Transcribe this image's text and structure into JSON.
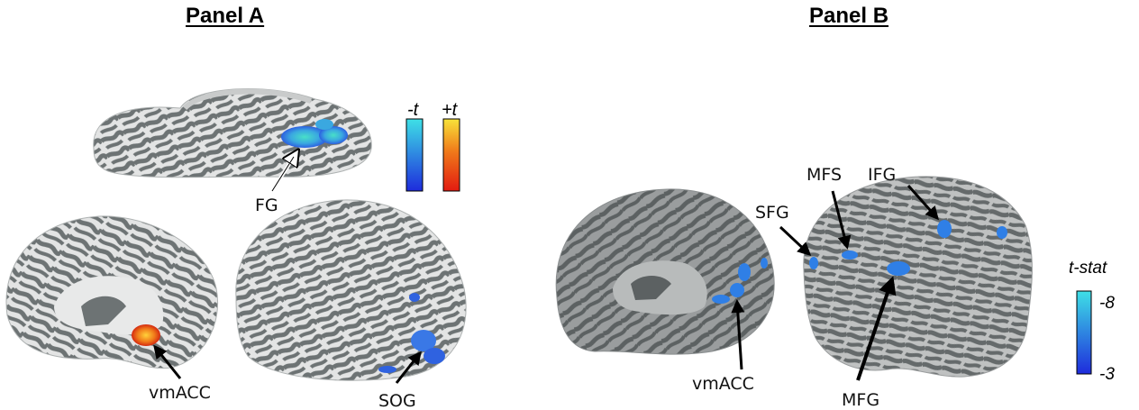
{
  "panels": {
    "a": {
      "title": "Panel A",
      "labels": {
        "fg": "FG",
        "vmacc": "vmACC",
        "sog": "SOG"
      },
      "colorbars": {
        "negative_label": "-t",
        "positive_label": "+t"
      }
    },
    "b": {
      "title": "Panel B",
      "labels": {
        "vmacc": "vmACC",
        "sfg": "SFG",
        "mfs": "MFS",
        "ifg": "IFG",
        "mfg": "MFG"
      },
      "colorbar": {
        "title": "t-stat",
        "max_label": "-8",
        "min_label": "-3"
      }
    }
  },
  "colors": {
    "sulcus": "#6d7374",
    "gyrus": "#e3e4e4",
    "neg_low": "#1e2bdc",
    "neg_high": "#3ee0e6",
    "pos_low": "#e21a10",
    "pos_high": "#f7e33a",
    "cluster_blue": "#2f7fe6"
  }
}
